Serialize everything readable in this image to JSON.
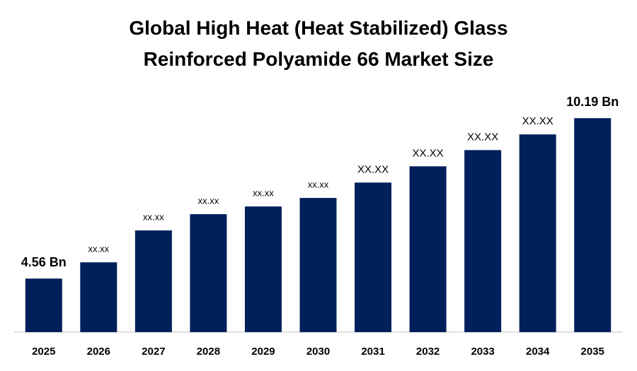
{
  "chart_data": {
    "type": "bar",
    "title": "Global High Heat (Heat Stabilized) Glass Reinforced Polyamide 66 Market Size",
    "categories": [
      "2025",
      "2026",
      "2027",
      "2028",
      "2029",
      "2030",
      "2031",
      "2032",
      "2033",
      "2034",
      "2035"
    ],
    "values": [
      4.56,
      5.13,
      6.25,
      6.82,
      7.09,
      7.39,
      7.93,
      8.5,
      9.07,
      9.62,
      10.19
    ],
    "value_labels": [
      "4.56 Bn",
      "xx.xx",
      "xx.xx",
      "xx.xx",
      "xx.xx",
      "xx.xx",
      "XX.XX",
      "XX.XX",
      "XX.XX",
      "XX.XX",
      "10.19 Bn"
    ],
    "color": "#00205b",
    "ylim": [
      2.68,
      11.5
    ]
  }
}
